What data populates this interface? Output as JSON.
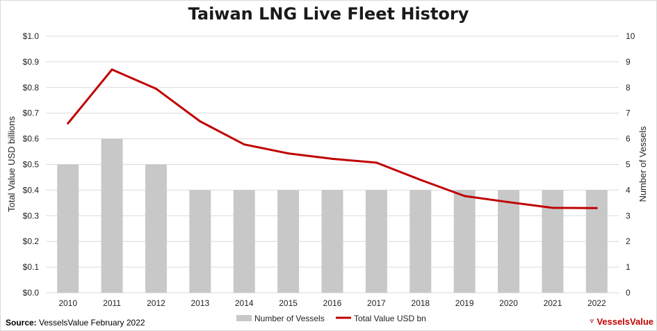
{
  "source": {
    "label": "Source:",
    "text": "VesselsValue February 2022"
  },
  "logo": {
    "text": "VesselsValue",
    "color": "#c00000"
  },
  "chart_data": {
    "type": "bar",
    "title": "Taiwan LNG Live Fleet History",
    "categories": [
      "2010",
      "2011",
      "2012",
      "2013",
      "2014",
      "2015",
      "2016",
      "2017",
      "2018",
      "2019",
      "2020",
      "2021",
      "2022"
    ],
    "ylabel_left": "Total Value USD billions",
    "ylabel_right": "Number of Vessels",
    "ylim_left": [
      0,
      1.0
    ],
    "ylim_right": [
      0,
      10
    ],
    "yticks_left": [
      "$0.0",
      "$0.1",
      "$0.2",
      "$0.3",
      "$0.4",
      "$0.5",
      "$0.6",
      "$0.7",
      "$0.8",
      "$0.9",
      "$1.0"
    ],
    "yticks_right": [
      "0",
      "1",
      "2",
      "3",
      "4",
      "5",
      "6",
      "7",
      "8",
      "9",
      "10"
    ],
    "grid": true,
    "legend_position": "bottom",
    "series": [
      {
        "name": "Number of Vessels",
        "type": "bar",
        "axis": "right",
        "color": "#c8c8c8",
        "values": [
          5,
          6,
          5,
          4,
          4,
          4,
          4,
          4,
          4,
          4,
          4,
          4,
          4
        ]
      },
      {
        "name": "Total Value USD bn",
        "type": "line",
        "axis": "left",
        "color": "#c00000",
        "values": [
          0.66,
          0.87,
          0.795,
          0.668,
          0.578,
          0.543,
          0.522,
          0.507,
          0.44,
          0.377,
          0.353,
          0.331,
          0.33
        ]
      }
    ]
  }
}
